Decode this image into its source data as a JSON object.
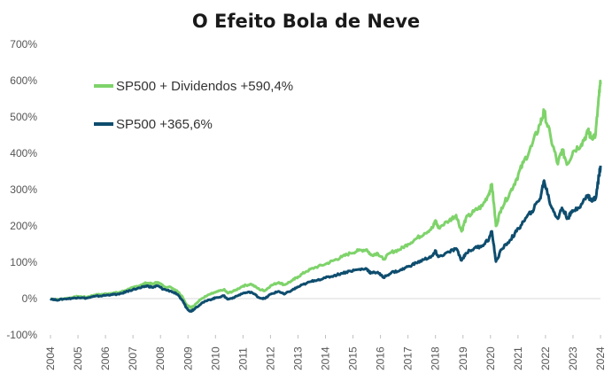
{
  "chart_data": {
    "type": "line",
    "title": "O Efeito Bola de Neve",
    "xlabel": "",
    "ylabel": "",
    "ylim": [
      -100,
      700
    ],
    "xlim": [
      2004,
      2024
    ],
    "grid": false,
    "legend_position": "top-left",
    "y_ticks": [
      "700%",
      "600%",
      "500%",
      "400%",
      "300%",
      "200%",
      "100%",
      "0%",
      "-100%"
    ],
    "y_tick_values": [
      700,
      600,
      500,
      400,
      300,
      200,
      100,
      0,
      -100
    ],
    "x_ticks": [
      "2004",
      "2005",
      "2006",
      "2007",
      "2008",
      "2009",
      "2010",
      "2011",
      "2012",
      "2013",
      "2014",
      "2015",
      "2016",
      "2017",
      "2018",
      "2019",
      "2020",
      "2021",
      "2022",
      "2023",
      "2024"
    ],
    "x_tick_values": [
      2004,
      2005,
      2006,
      2007,
      2008,
      2009,
      2010,
      2011,
      2012,
      2013,
      2014,
      2015,
      2016,
      2017,
      2018,
      2019,
      2020,
      2021,
      2022,
      2023,
      2024
    ],
    "series": [
      {
        "name": "SP500 + Dividendos +590,4%",
        "color": "#7ed36a",
        "points": [
          [
            2004.0,
            0
          ],
          [
            2004.2,
            -3
          ],
          [
            2004.5,
            0
          ],
          [
            2004.8,
            3
          ],
          [
            2005.0,
            6
          ],
          [
            2005.3,
            4
          ],
          [
            2005.6,
            10
          ],
          [
            2005.9,
            12
          ],
          [
            2006.2,
            15
          ],
          [
            2006.5,
            17
          ],
          [
            2006.8,
            25
          ],
          [
            2007.0,
            30
          ],
          [
            2007.3,
            38
          ],
          [
            2007.5,
            43
          ],
          [
            2007.7,
            40
          ],
          [
            2007.9,
            45
          ],
          [
            2008.1,
            35
          ],
          [
            2008.4,
            30
          ],
          [
            2008.6,
            22
          ],
          [
            2008.8,
            5
          ],
          [
            2008.95,
            -18
          ],
          [
            2009.1,
            -25
          ],
          [
            2009.2,
            -20
          ],
          [
            2009.5,
            0
          ],
          [
            2009.8,
            12
          ],
          [
            2010.0,
            17
          ],
          [
            2010.3,
            25
          ],
          [
            2010.45,
            15
          ],
          [
            2010.7,
            22
          ],
          [
            2011.0,
            35
          ],
          [
            2011.3,
            40
          ],
          [
            2011.6,
            25
          ],
          [
            2011.8,
            22
          ],
          [
            2012.0,
            35
          ],
          [
            2012.3,
            45
          ],
          [
            2012.5,
            38
          ],
          [
            2012.8,
            50
          ],
          [
            2013.0,
            60
          ],
          [
            2013.3,
            75
          ],
          [
            2013.6,
            85
          ],
          [
            2014.0,
            95
          ],
          [
            2014.3,
            105
          ],
          [
            2014.6,
            115
          ],
          [
            2014.9,
            125
          ],
          [
            2015.2,
            132
          ],
          [
            2015.5,
            135
          ],
          [
            2015.65,
            120
          ],
          [
            2015.9,
            125
          ],
          [
            2016.1,
            108
          ],
          [
            2016.4,
            128
          ],
          [
            2016.7,
            135
          ],
          [
            2017.0,
            150
          ],
          [
            2017.3,
            165
          ],
          [
            2017.6,
            180
          ],
          [
            2017.9,
            195
          ],
          [
            2018.0,
            215
          ],
          [
            2018.1,
            195
          ],
          [
            2018.5,
            215
          ],
          [
            2018.75,
            230
          ],
          [
            2018.95,
            185
          ],
          [
            2019.1,
            220
          ],
          [
            2019.4,
            240
          ],
          [
            2019.7,
            255
          ],
          [
            2019.95,
            290
          ],
          [
            2020.05,
            315
          ],
          [
            2020.2,
            200
          ],
          [
            2020.4,
            250
          ],
          [
            2020.7,
            290
          ],
          [
            2020.95,
            330
          ],
          [
            2021.2,
            375
          ],
          [
            2021.5,
            420
          ],
          [
            2021.8,
            480
          ],
          [
            2021.95,
            515
          ],
          [
            2022.2,
            440
          ],
          [
            2022.45,
            370
          ],
          [
            2022.6,
            410
          ],
          [
            2022.8,
            370
          ],
          [
            2023.0,
            405
          ],
          [
            2023.3,
            425
          ],
          [
            2023.55,
            460
          ],
          [
            2023.65,
            445
          ],
          [
            2023.82,
            450
          ],
          [
            2023.95,
            560
          ],
          [
            2024.0,
            590
          ]
        ]
      },
      {
        "name": "SP500 +365,6%",
        "color": "#0e4d6e",
        "points": [
          [
            2004.0,
            0
          ],
          [
            2004.2,
            -4
          ],
          [
            2004.5,
            -1
          ],
          [
            2004.8,
            1
          ],
          [
            2005.0,
            3
          ],
          [
            2005.3,
            1
          ],
          [
            2005.6,
            6
          ],
          [
            2005.9,
            8
          ],
          [
            2006.2,
            11
          ],
          [
            2006.5,
            12
          ],
          [
            2006.8,
            20
          ],
          [
            2007.0,
            25
          ],
          [
            2007.3,
            30
          ],
          [
            2007.5,
            35
          ],
          [
            2007.7,
            31
          ],
          [
            2007.9,
            35
          ],
          [
            2008.1,
            26
          ],
          [
            2008.4,
            20
          ],
          [
            2008.6,
            12
          ],
          [
            2008.8,
            -5
          ],
          [
            2008.95,
            -26
          ],
          [
            2009.1,
            -35
          ],
          [
            2009.2,
            -30
          ],
          [
            2009.5,
            -12
          ],
          [
            2009.8,
            -3
          ],
          [
            2010.0,
            2
          ],
          [
            2010.3,
            8
          ],
          [
            2010.45,
            -2
          ],
          [
            2010.7,
            4
          ],
          [
            2011.0,
            15
          ],
          [
            2011.3,
            18
          ],
          [
            2011.6,
            2
          ],
          [
            2011.8,
            0
          ],
          [
            2012.0,
            12
          ],
          [
            2012.3,
            20
          ],
          [
            2012.5,
            12
          ],
          [
            2012.8,
            24
          ],
          [
            2013.0,
            32
          ],
          [
            2013.3,
            42
          ],
          [
            2013.6,
            50
          ],
          [
            2014.0,
            57
          ],
          [
            2014.3,
            63
          ],
          [
            2014.6,
            70
          ],
          [
            2014.9,
            76
          ],
          [
            2015.2,
            80
          ],
          [
            2015.5,
            82
          ],
          [
            2015.65,
            70
          ],
          [
            2015.9,
            73
          ],
          [
            2016.1,
            58
          ],
          [
            2016.4,
            72
          ],
          [
            2016.7,
            77
          ],
          [
            2017.0,
            88
          ],
          [
            2017.3,
            98
          ],
          [
            2017.6,
            108
          ],
          [
            2017.9,
            118
          ],
          [
            2018.0,
            130
          ],
          [
            2018.1,
            115
          ],
          [
            2018.5,
            128
          ],
          [
            2018.75,
            138
          ],
          [
            2018.95,
            105
          ],
          [
            2019.1,
            125
          ],
          [
            2019.4,
            138
          ],
          [
            2019.7,
            146
          ],
          [
            2019.95,
            165
          ],
          [
            2020.05,
            185
          ],
          [
            2020.2,
            102
          ],
          [
            2020.4,
            135
          ],
          [
            2020.7,
            160
          ],
          [
            2020.95,
            185
          ],
          [
            2021.2,
            212
          ],
          [
            2021.5,
            240
          ],
          [
            2021.8,
            275
          ],
          [
            2021.95,
            325
          ],
          [
            2022.2,
            255
          ],
          [
            2022.45,
            220
          ],
          [
            2022.6,
            250
          ],
          [
            2022.8,
            222
          ],
          [
            2023.0,
            240
          ],
          [
            2023.3,
            260
          ],
          [
            2023.55,
            285
          ],
          [
            2023.65,
            270
          ],
          [
            2023.82,
            275
          ],
          [
            2023.95,
            340
          ],
          [
            2024.0,
            366
          ]
        ]
      }
    ]
  }
}
